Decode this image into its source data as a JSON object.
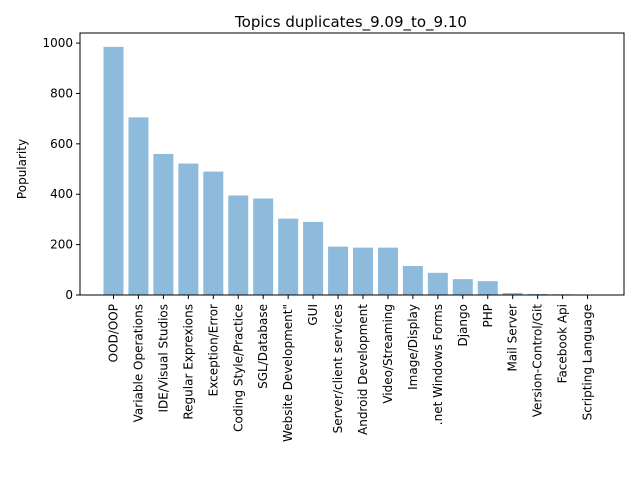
{
  "chart_data": {
    "type": "bar",
    "title": "Topics duplicates_9.09_to_9.10",
    "xlabel": "",
    "ylabel": "Popularity",
    "ylim": [
      0,
      1040
    ],
    "yticks": [
      0,
      200,
      400,
      600,
      800,
      1000
    ],
    "grid": false,
    "bar_color": "#8ebbdc",
    "categories": [
      "OOD/OOP",
      "Variable Operations",
      "IDE/Visual Studios",
      "Regular Exprexions",
      "Exception/Error",
      "Coding Style/Practice",
      "SGL/Database",
      "Website Development\"",
      "GUI",
      "Server/client services",
      "Android Development",
      "Video/Streaming",
      "Image/Display",
      ".net Windows Forms",
      "Django",
      "PHP",
      "Mail Server",
      "Version-Control/Git",
      "Facebook Api",
      "Scripting Language"
    ],
    "values": [
      985,
      705,
      560,
      522,
      490,
      395,
      383,
      303,
      290,
      192,
      188,
      188,
      115,
      88,
      63,
      55,
      8,
      4,
      3,
      2
    ]
  }
}
